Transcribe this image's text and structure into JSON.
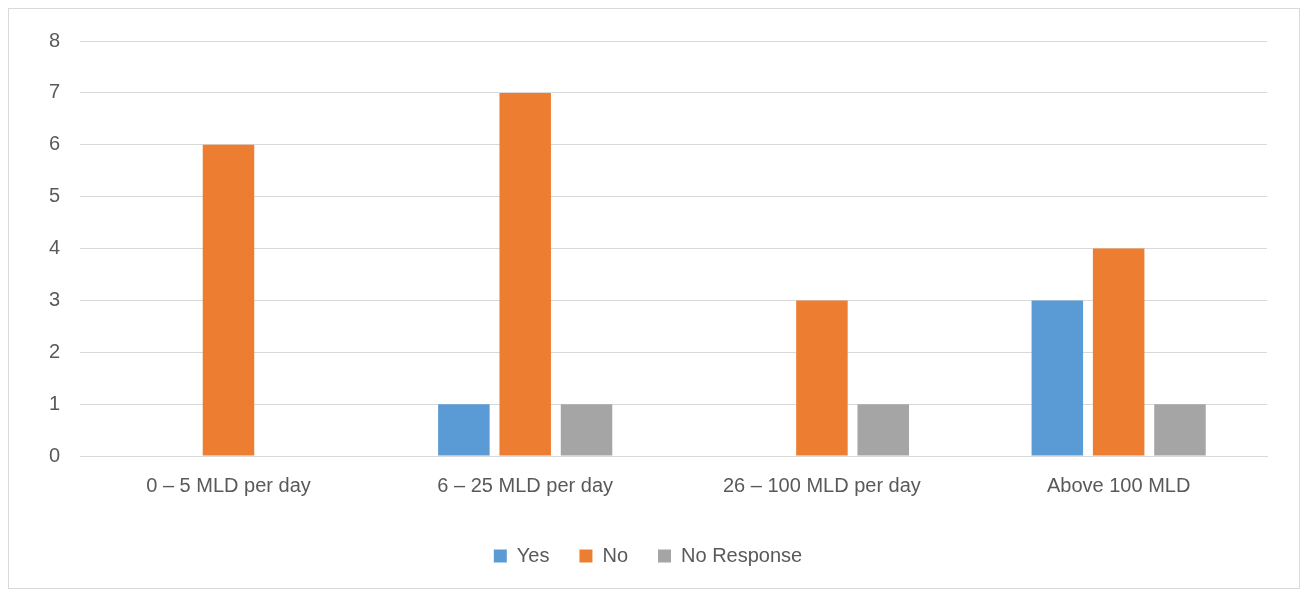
{
  "chart_data": {
    "type": "bar",
    "categories": [
      "0 – 5 MLD per day",
      "6 – 25 MLD per day",
      "26 – 100 MLD per day",
      "Above 100 MLD"
    ],
    "series": [
      {
        "name": "Yes",
        "color": "#5b9bd5",
        "values": [
          0,
          1,
          0,
          3
        ]
      },
      {
        "name": "No",
        "color": "#ed7d31",
        "values": [
          6,
          7,
          3,
          4
        ]
      },
      {
        "name": "No Response",
        "color": "#a5a5a5",
        "values": [
          0,
          1,
          1,
          1
        ]
      }
    ],
    "ylim": [
      0,
      8
    ],
    "yticks": [
      0,
      1,
      2,
      3,
      4,
      5,
      6,
      7,
      8
    ],
    "grid": "y",
    "legend": "bottom"
  }
}
